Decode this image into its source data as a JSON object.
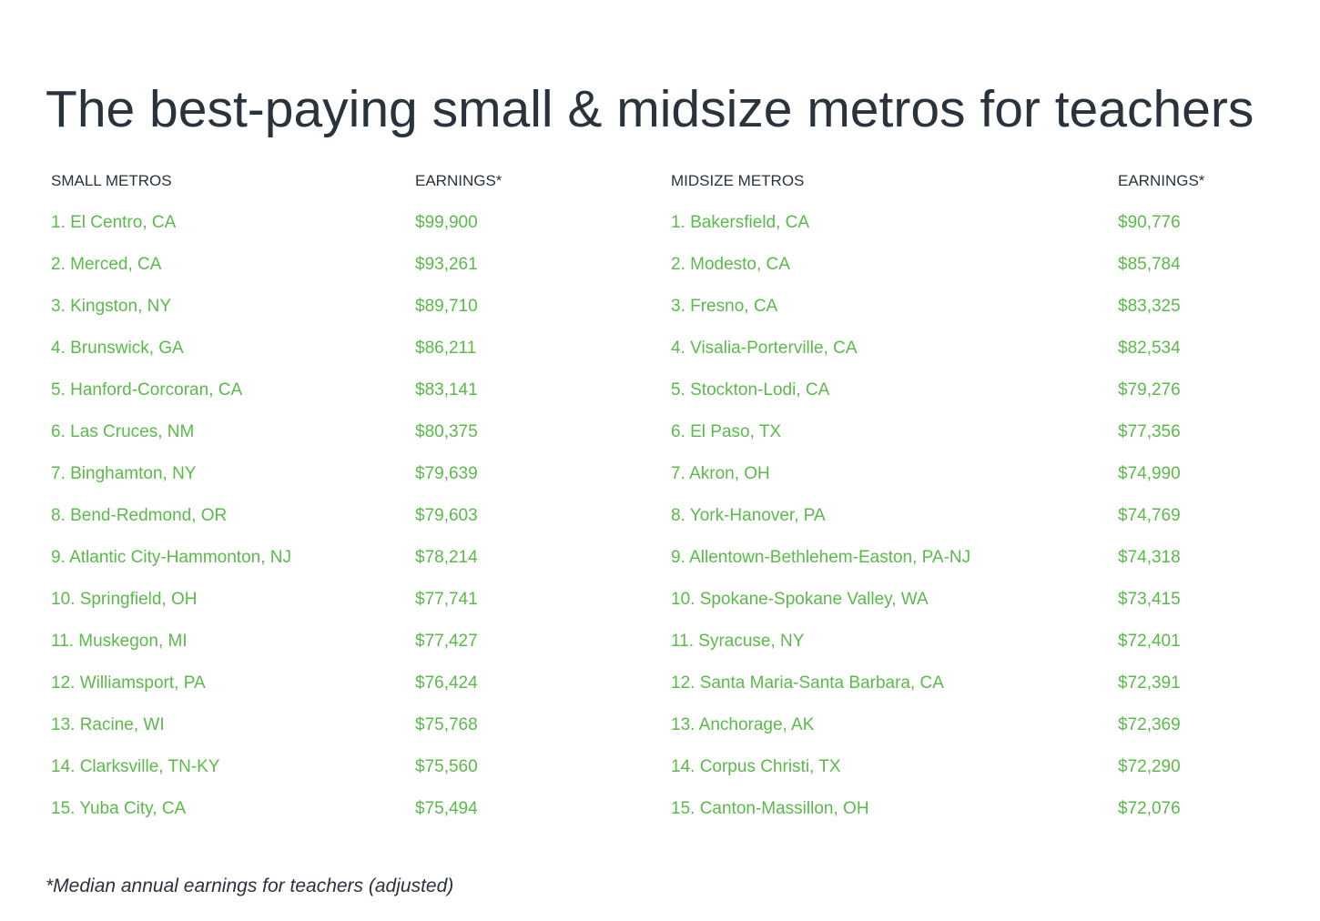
{
  "colors": {
    "accent_green": "#5aba4a",
    "text_dark": "#2a323c",
    "background": "#ffffff"
  },
  "chart_data": {
    "type": "table",
    "title": "The best-paying small & midsize metros for teachers",
    "footnote": "*Median annual earnings for teachers (adjusted)",
    "groups": [
      {
        "metros_header": "SMALL METROS",
        "earnings_header": "EARNINGS*",
        "rows": [
          {
            "rank": "1",
            "metro": "El Centro, CA",
            "earnings": "$99,900",
            "value": 99900
          },
          {
            "rank": "2",
            "metro": "Merced, CA",
            "earnings": "$93,261",
            "value": 93261
          },
          {
            "rank": "3",
            "metro": "Kingston, NY",
            "earnings": "$89,710",
            "value": 89710
          },
          {
            "rank": "4",
            "metro": "Brunswick, GA",
            "earnings": "$86,211",
            "value": 86211
          },
          {
            "rank": "5",
            "metro": "Hanford-Corcoran, CA",
            "earnings": "$83,141",
            "value": 83141
          },
          {
            "rank": "6",
            "metro": "Las Cruces, NM",
            "earnings": "$80,375",
            "value": 80375
          },
          {
            "rank": "7",
            "metro": "Binghamton, NY",
            "earnings": "$79,639",
            "value": 79639
          },
          {
            "rank": "8",
            "metro": "Bend-Redmond, OR",
            "earnings": "$79,603",
            "value": 79603
          },
          {
            "rank": "9",
            "metro": "Atlantic City-Hammonton, NJ",
            "earnings": "$78,214",
            "value": 78214
          },
          {
            "rank": "10",
            "metro": "Springfield, OH",
            "earnings": "$77,741",
            "value": 77741
          },
          {
            "rank": "11",
            "metro": "Muskegon, MI",
            "earnings": "$77,427",
            "value": 77427
          },
          {
            "rank": "12",
            "metro": "Williamsport, PA",
            "earnings": "$76,424",
            "value": 76424
          },
          {
            "rank": "13",
            "metro": "Racine, WI",
            "earnings": "$75,768",
            "value": 75768
          },
          {
            "rank": "14",
            "metro": "Clarksville, TN-KY",
            "earnings": "$75,560",
            "value": 75560
          },
          {
            "rank": "15",
            "metro": "Yuba City, CA",
            "earnings": "$75,494",
            "value": 75494
          }
        ]
      },
      {
        "metros_header": "MIDSIZE METROS",
        "earnings_header": "EARNINGS*",
        "rows": [
          {
            "rank": "1",
            "metro": "Bakersfield, CA",
            "earnings": "$90,776",
            "value": 90776
          },
          {
            "rank": "2",
            "metro": "Modesto, CA",
            "earnings": "$85,784",
            "value": 85784
          },
          {
            "rank": "3",
            "metro": "Fresno, CA",
            "earnings": "$83,325",
            "value": 83325
          },
          {
            "rank": "4",
            "metro": "Visalia-Porterville, CA",
            "earnings": "$82,534",
            "value": 82534
          },
          {
            "rank": "5",
            "metro": "Stockton-Lodi, CA",
            "earnings": "$79,276",
            "value": 79276
          },
          {
            "rank": "6",
            "metro": "El Paso, TX",
            "earnings": "$77,356",
            "value": 77356
          },
          {
            "rank": "7",
            "metro": "Akron, OH",
            "earnings": "$74,990",
            "value": 74990
          },
          {
            "rank": "8",
            "metro": "York-Hanover, PA",
            "earnings": "$74,769",
            "value": 74769
          },
          {
            "rank": "9",
            "metro": "Allentown-Bethlehem-Easton, PA-NJ",
            "earnings": "$74,318",
            "value": 74318
          },
          {
            "rank": "10",
            "metro": "Spokane-Spokane Valley, WA",
            "earnings": "$73,415",
            "value": 73415
          },
          {
            "rank": "11",
            "metro": "Syracuse, NY",
            "earnings": "$72,401",
            "value": 72401
          },
          {
            "rank": "12",
            "metro": "Santa Maria-Santa Barbara, CA",
            "earnings": "$72,391",
            "value": 72391
          },
          {
            "rank": "13",
            "metro": "Anchorage, AK",
            "earnings": "$72,369",
            "value": 72369
          },
          {
            "rank": "14",
            "metro": "Corpus Christi, TX",
            "earnings": "$72,290",
            "value": 72290
          },
          {
            "rank": "15",
            "metro": "Canton-Massillon, OH",
            "earnings": "$72,076",
            "value": 72076
          }
        ]
      }
    ]
  }
}
